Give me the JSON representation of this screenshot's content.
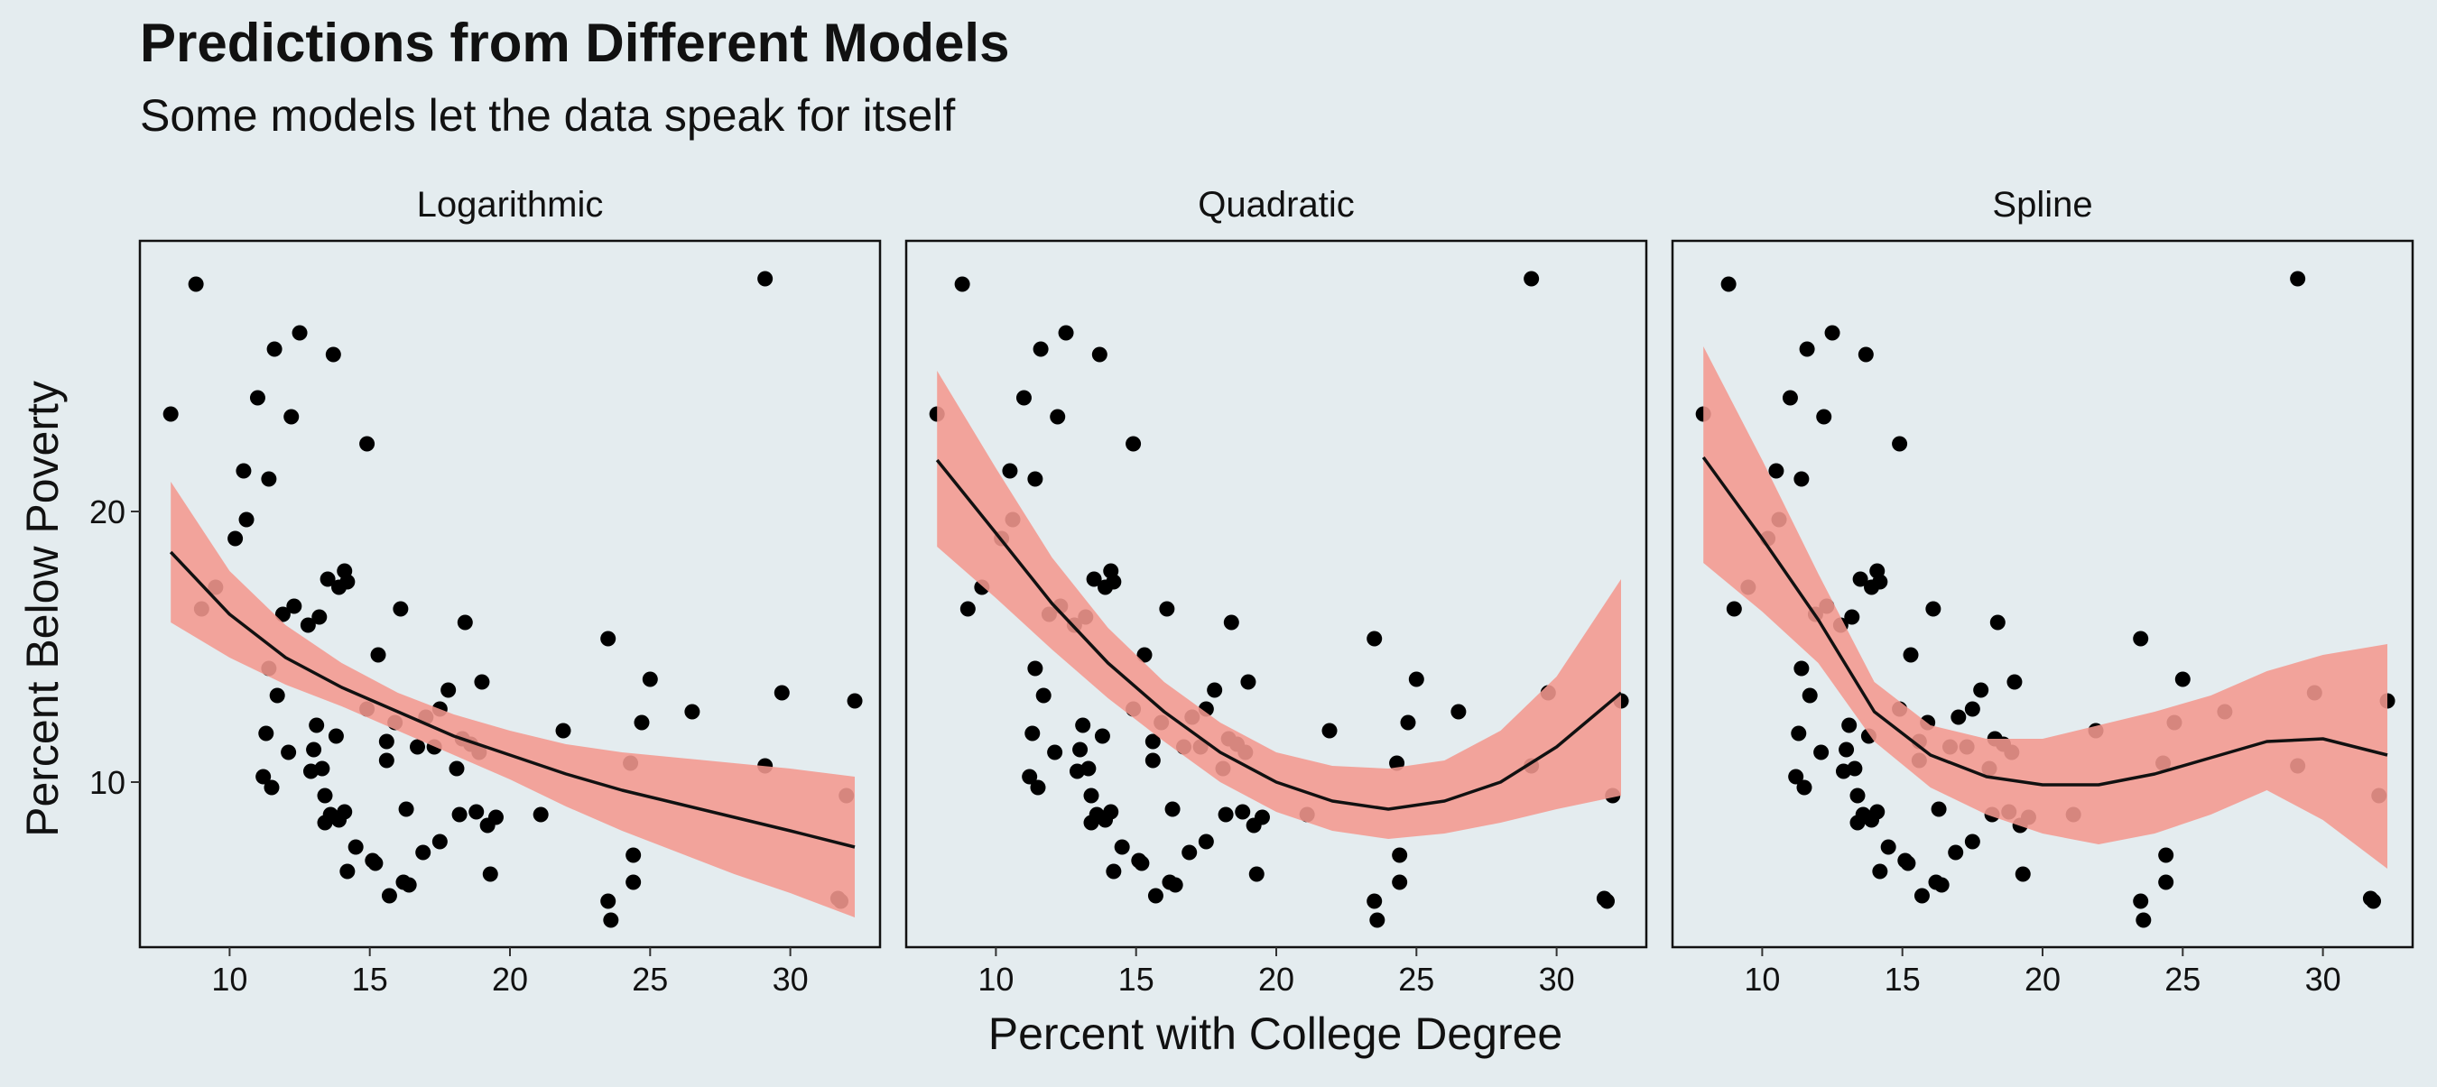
{
  "chart_data": {
    "type": "scatter",
    "title": "Predictions from Different Models",
    "subtitle": "Some models let the data speak for itself",
    "xlabel": "Percent with College Degree",
    "ylabel": "Percent Below Poverty",
    "xlim": [
      6.8,
      33.2
    ],
    "ylim": [
      3.9,
      30.0
    ],
    "x_ticks": [
      10,
      15,
      20,
      25,
      30
    ],
    "y_ticks": [
      10,
      20
    ],
    "colors": {
      "background": "#e4ecef",
      "points": "#000000",
      "ribbon": "#f4998f",
      "fit_line": "#111111",
      "panel_border": "#111111"
    },
    "points": [
      {
        "x": 7.9,
        "y": 23.6
      },
      {
        "x": 8.8,
        "y": 28.4
      },
      {
        "x": 9.0,
        "y": 16.4
      },
      {
        "x": 9.5,
        "y": 17.2
      },
      {
        "x": 10.2,
        "y": 19.0
      },
      {
        "x": 10.5,
        "y": 21.5
      },
      {
        "x": 10.6,
        "y": 19.7
      },
      {
        "x": 11.0,
        "y": 24.2
      },
      {
        "x": 11.2,
        "y": 10.2
      },
      {
        "x": 11.3,
        "y": 11.8
      },
      {
        "x": 11.4,
        "y": 21.2
      },
      {
        "x": 11.4,
        "y": 14.2
      },
      {
        "x": 11.5,
        "y": 9.8
      },
      {
        "x": 11.6,
        "y": 26.0
      },
      {
        "x": 11.7,
        "y": 13.2
      },
      {
        "x": 11.9,
        "y": 16.2
      },
      {
        "x": 12.1,
        "y": 11.1
      },
      {
        "x": 12.2,
        "y": 23.5
      },
      {
        "x": 12.3,
        "y": 16.5
      },
      {
        "x": 12.5,
        "y": 26.6
      },
      {
        "x": 12.8,
        "y": 15.8
      },
      {
        "x": 12.9,
        "y": 10.4
      },
      {
        "x": 13.0,
        "y": 11.2
      },
      {
        "x": 13.1,
        "y": 12.1
      },
      {
        "x": 13.2,
        "y": 16.1
      },
      {
        "x": 13.3,
        "y": 10.5
      },
      {
        "x": 13.4,
        "y": 8.5
      },
      {
        "x": 13.4,
        "y": 9.5
      },
      {
        "x": 13.5,
        "y": 17.5
      },
      {
        "x": 13.6,
        "y": 8.8
      },
      {
        "x": 13.7,
        "y": 25.8
      },
      {
        "x": 13.8,
        "y": 11.7
      },
      {
        "x": 13.9,
        "y": 17.2
      },
      {
        "x": 13.9,
        "y": 8.6
      },
      {
        "x": 14.1,
        "y": 8.9
      },
      {
        "x": 14.1,
        "y": 17.8
      },
      {
        "x": 14.2,
        "y": 6.7
      },
      {
        "x": 14.2,
        "y": 17.4
      },
      {
        "x": 14.5,
        "y": 7.6
      },
      {
        "x": 14.9,
        "y": 22.5
      },
      {
        "x": 14.9,
        "y": 12.7
      },
      {
        "x": 15.1,
        "y": 7.1
      },
      {
        "x": 15.2,
        "y": 7.0
      },
      {
        "x": 15.3,
        "y": 14.7
      },
      {
        "x": 15.6,
        "y": 11.5
      },
      {
        "x": 15.6,
        "y": 10.8
      },
      {
        "x": 15.7,
        "y": 5.8
      },
      {
        "x": 15.9,
        "y": 12.2
      },
      {
        "x": 16.1,
        "y": 16.4
      },
      {
        "x": 16.2,
        "y": 6.3
      },
      {
        "x": 16.3,
        "y": 9.0
      },
      {
        "x": 16.4,
        "y": 6.2
      },
      {
        "x": 16.7,
        "y": 11.3
      },
      {
        "x": 16.9,
        "y": 7.4
      },
      {
        "x": 17.0,
        "y": 12.4
      },
      {
        "x": 17.3,
        "y": 11.3
      },
      {
        "x": 17.5,
        "y": 7.8
      },
      {
        "x": 17.5,
        "y": 12.7
      },
      {
        "x": 17.8,
        "y": 13.4
      },
      {
        "x": 18.1,
        "y": 10.5
      },
      {
        "x": 18.2,
        "y": 8.8
      },
      {
        "x": 18.3,
        "y": 11.6
      },
      {
        "x": 18.4,
        "y": 15.9
      },
      {
        "x": 18.6,
        "y": 11.4
      },
      {
        "x": 18.8,
        "y": 8.9
      },
      {
        "x": 18.9,
        "y": 11.1
      },
      {
        "x": 19.0,
        "y": 13.7
      },
      {
        "x": 19.2,
        "y": 8.4
      },
      {
        "x": 19.3,
        "y": 6.6
      },
      {
        "x": 19.5,
        "y": 8.7
      },
      {
        "x": 21.1,
        "y": 8.8
      },
      {
        "x": 21.9,
        "y": 11.9
      },
      {
        "x": 23.5,
        "y": 15.3
      },
      {
        "x": 23.5,
        "y": 5.6
      },
      {
        "x": 23.6,
        "y": 4.9
      },
      {
        "x": 24.3,
        "y": 10.7
      },
      {
        "x": 24.4,
        "y": 6.3
      },
      {
        "x": 24.4,
        "y": 7.3
      },
      {
        "x": 24.7,
        "y": 12.2
      },
      {
        "x": 25.0,
        "y": 13.8
      },
      {
        "x": 26.5,
        "y": 12.6
      },
      {
        "x": 29.1,
        "y": 28.6
      },
      {
        "x": 29.1,
        "y": 10.6
      },
      {
        "x": 29.7,
        "y": 13.3
      },
      {
        "x": 31.7,
        "y": 5.7
      },
      {
        "x": 31.8,
        "y": 5.6
      },
      {
        "x": 32.0,
        "y": 9.5
      },
      {
        "x": 32.3,
        "y": 13.0
      }
    ],
    "panels": [
      {
        "name": "Logarithmic",
        "fit": [
          [
            7.9,
            18.5
          ],
          [
            10,
            16.2
          ],
          [
            12,
            14.6
          ],
          [
            14,
            13.5
          ],
          [
            16,
            12.6
          ],
          [
            18,
            11.7
          ],
          [
            20,
            11.0
          ],
          [
            22,
            10.3
          ],
          [
            24,
            9.7
          ],
          [
            26,
            9.2
          ],
          [
            28,
            8.7
          ],
          [
            30,
            8.2
          ],
          [
            32.3,
            7.6
          ]
        ],
        "lower": [
          [
            7.9,
            15.9
          ],
          [
            10,
            14.6
          ],
          [
            12,
            13.6
          ],
          [
            14,
            12.8
          ],
          [
            16,
            11.9
          ],
          [
            18,
            11.0
          ],
          [
            20,
            10.1
          ],
          [
            22,
            9.1
          ],
          [
            24,
            8.2
          ],
          [
            26,
            7.4
          ],
          [
            28,
            6.6
          ],
          [
            30,
            5.9
          ],
          [
            32.3,
            5.0
          ]
        ],
        "upper": [
          [
            7.9,
            21.1
          ],
          [
            10,
            17.8
          ],
          [
            12,
            15.8
          ],
          [
            14,
            14.4
          ],
          [
            16,
            13.3
          ],
          [
            18,
            12.5
          ],
          [
            20,
            11.9
          ],
          [
            22,
            11.4
          ],
          [
            24,
            11.1
          ],
          [
            26,
            10.9
          ],
          [
            28,
            10.7
          ],
          [
            30,
            10.5
          ],
          [
            32.3,
            10.2
          ]
        ]
      },
      {
        "name": "Quadratic",
        "fit": [
          [
            7.9,
            21.9
          ],
          [
            10,
            19.2
          ],
          [
            12,
            16.6
          ],
          [
            14,
            14.4
          ],
          [
            16,
            12.6
          ],
          [
            18,
            11.1
          ],
          [
            20,
            10.0
          ],
          [
            22,
            9.3
          ],
          [
            24,
            9.0
          ],
          [
            26,
            9.3
          ],
          [
            28,
            10.0
          ],
          [
            30,
            11.3
          ],
          [
            32.3,
            13.3
          ]
        ],
        "lower": [
          [
            7.9,
            18.7
          ],
          [
            10,
            16.8
          ],
          [
            12,
            14.9
          ],
          [
            14,
            13.1
          ],
          [
            16,
            11.5
          ],
          [
            18,
            10.0
          ],
          [
            20,
            8.9
          ],
          [
            22,
            8.2
          ],
          [
            24,
            7.9
          ],
          [
            26,
            8.1
          ],
          [
            28,
            8.5
          ],
          [
            30,
            9.0
          ],
          [
            32.3,
            9.5
          ]
        ],
        "upper": [
          [
            7.9,
            25.2
          ],
          [
            10,
            21.6
          ],
          [
            12,
            18.3
          ],
          [
            14,
            15.7
          ],
          [
            16,
            13.7
          ],
          [
            18,
            12.2
          ],
          [
            20,
            11.1
          ],
          [
            22,
            10.6
          ],
          [
            24,
            10.5
          ],
          [
            26,
            10.8
          ],
          [
            28,
            11.9
          ],
          [
            30,
            13.9
          ],
          [
            32.3,
            17.5
          ]
        ]
      },
      {
        "name": "Spline",
        "fit": [
          [
            7.9,
            22.0
          ],
          [
            10,
            19.0
          ],
          [
            12,
            16.0
          ],
          [
            14,
            12.6
          ],
          [
            16,
            11.0
          ],
          [
            18,
            10.2
          ],
          [
            20,
            9.9
          ],
          [
            22,
            9.9
          ],
          [
            24,
            10.3
          ],
          [
            26,
            10.9
          ],
          [
            28,
            11.5
          ],
          [
            30,
            11.6
          ],
          [
            32.3,
            11.0
          ]
        ],
        "lower": [
          [
            7.9,
            18.1
          ],
          [
            10,
            16.3
          ],
          [
            12,
            14.4
          ],
          [
            14,
            11.5
          ],
          [
            16,
            9.8
          ],
          [
            18,
            8.8
          ],
          [
            20,
            8.1
          ],
          [
            22,
            7.7
          ],
          [
            24,
            8.1
          ],
          [
            26,
            8.8
          ],
          [
            28,
            9.7
          ],
          [
            30,
            8.6
          ],
          [
            32.3,
            6.8
          ]
        ],
        "upper": [
          [
            7.9,
            26.1
          ],
          [
            10,
            21.9
          ],
          [
            12,
            17.7
          ],
          [
            14,
            13.7
          ],
          [
            16,
            12.1
          ],
          [
            18,
            11.6
          ],
          [
            20,
            11.6
          ],
          [
            22,
            12.1
          ],
          [
            24,
            12.6
          ],
          [
            26,
            13.2
          ],
          [
            28,
            14.1
          ],
          [
            30,
            14.7
          ],
          [
            32.3,
            15.1
          ]
        ]
      }
    ]
  }
}
